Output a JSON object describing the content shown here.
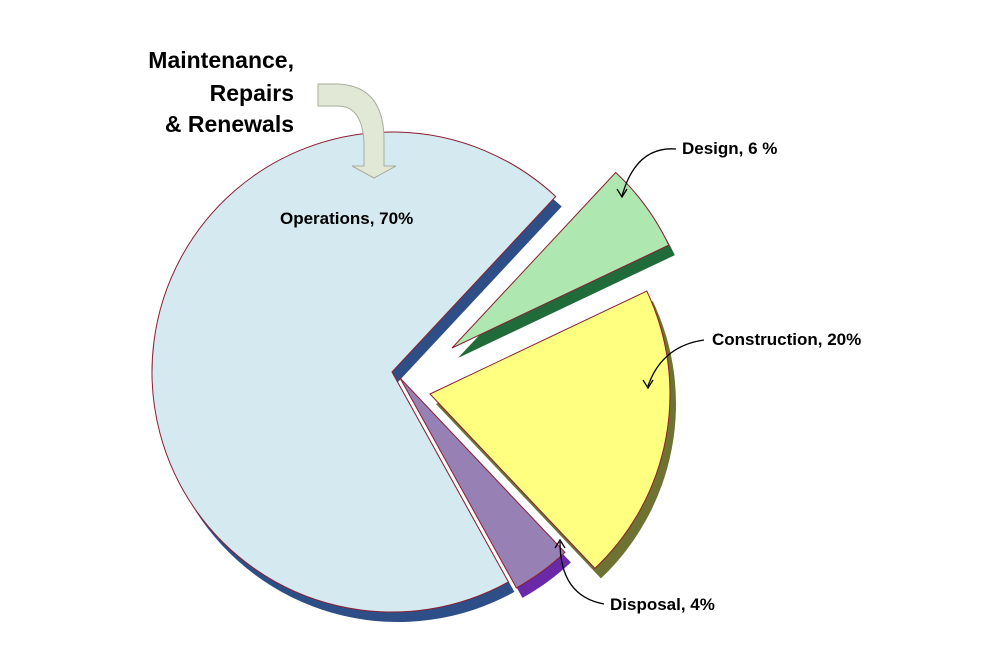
{
  "chart_data": {
    "type": "pie",
    "title": "",
    "slices": [
      {
        "name": "Operations",
        "label": "Operations, 70%",
        "value": 70,
        "color": "#d4e9f0",
        "side_color": "#2d4e86",
        "exploded": false
      },
      {
        "name": "Design",
        "label": "Design, 6 %",
        "value": 6,
        "color": "#aee8b0",
        "side_color": "#1f6b3a",
        "exploded": true
      },
      {
        "name": "Construction",
        "label": "Construction, 20%",
        "value": 20,
        "color": "#ffff80",
        "side_color": "#6e7232",
        "exploded": true
      },
      {
        "name": "Disposal",
        "label": "Disposal, 4%",
        "value": 4,
        "color": "#9680b4",
        "side_color": "#6a2aa8",
        "exploded": false
      }
    ],
    "annotation": {
      "lines": [
        "Maintenance,",
        "Repairs",
        "& Renewals"
      ],
      "arrow_color": "#e2e8d6"
    }
  }
}
